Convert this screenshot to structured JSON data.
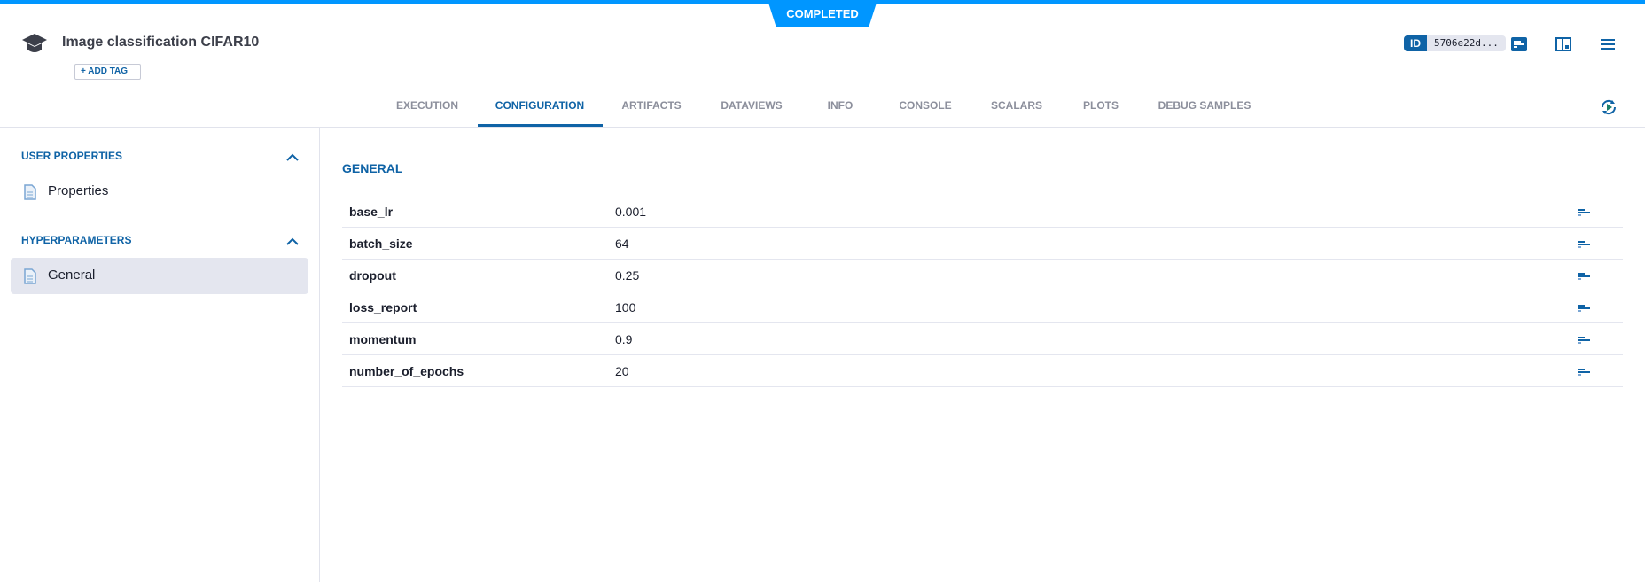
{
  "status": "COMPLETED",
  "header": {
    "title": "Image classification CIFAR10",
    "add_tag": "+ ADD TAG",
    "id_label": "ID",
    "id_value": "5706e22d...",
    "icons": [
      "info-panel-icon",
      "layout-icon",
      "menu-icon",
      "autorefresh-icon"
    ]
  },
  "tabs": [
    {
      "label": "EXECUTION",
      "active": false
    },
    {
      "label": "CONFIGURATION",
      "active": true
    },
    {
      "label": "ARTIFACTS",
      "active": false
    },
    {
      "label": "DATAVIEWS",
      "active": false
    },
    {
      "label": "INFO",
      "active": false
    },
    {
      "label": "CONSOLE",
      "active": false
    },
    {
      "label": "SCALARS",
      "active": false
    },
    {
      "label": "PLOTS",
      "active": false
    },
    {
      "label": "DEBUG SAMPLES",
      "active": false
    }
  ],
  "sidebar": {
    "sections": [
      {
        "title": "USER PROPERTIES",
        "items": [
          {
            "label": "Properties",
            "selected": false
          }
        ]
      },
      {
        "title": "HYPERPARAMETERS",
        "items": [
          {
            "label": "General",
            "selected": true
          }
        ]
      }
    ]
  },
  "main": {
    "section_title": "GENERAL",
    "params": [
      {
        "name": "base_lr",
        "value": "0.001"
      },
      {
        "name": "batch_size",
        "value": "64"
      },
      {
        "name": "dropout",
        "value": "0.25"
      },
      {
        "name": "loss_report",
        "value": "100"
      },
      {
        "name": "momentum",
        "value": "0.9"
      },
      {
        "name": "number_of_epochs",
        "value": "20"
      }
    ]
  },
  "colors": {
    "accent": "#0f63a6",
    "status": "#0096ff",
    "selected_bg": "#e4e6ef"
  }
}
